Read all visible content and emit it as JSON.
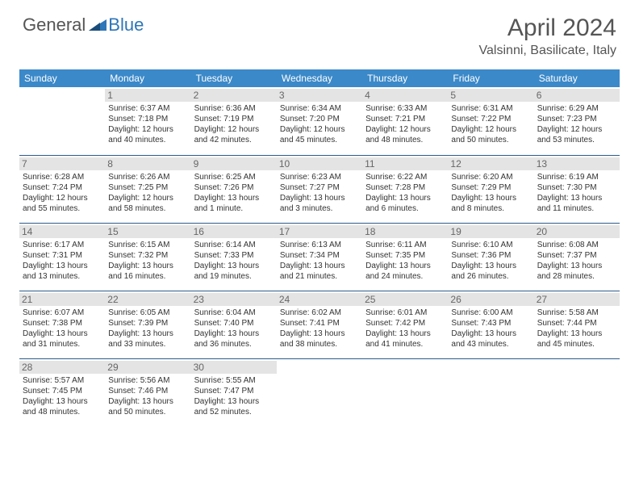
{
  "logo": {
    "part1": "General",
    "part2": "Blue"
  },
  "title": "April 2024",
  "location": "Valsinni, Basilicate, Italy",
  "colors": {
    "header_bg": "#3b89c9",
    "border": "#2d5a8a",
    "daynum_bg": "#e4e4e4",
    "text": "#333333",
    "logo_blue": "#2d76b8"
  },
  "weekdays": [
    "Sunday",
    "Monday",
    "Tuesday",
    "Wednesday",
    "Thursday",
    "Friday",
    "Saturday"
  ],
  "weeks": [
    [
      null,
      {
        "n": "1",
        "sr": "6:37 AM",
        "ss": "7:18 PM",
        "d": "12 hours and 40 minutes."
      },
      {
        "n": "2",
        "sr": "6:36 AM",
        "ss": "7:19 PM",
        "d": "12 hours and 42 minutes."
      },
      {
        "n": "3",
        "sr": "6:34 AM",
        "ss": "7:20 PM",
        "d": "12 hours and 45 minutes."
      },
      {
        "n": "4",
        "sr": "6:33 AM",
        "ss": "7:21 PM",
        "d": "12 hours and 48 minutes."
      },
      {
        "n": "5",
        "sr": "6:31 AM",
        "ss": "7:22 PM",
        "d": "12 hours and 50 minutes."
      },
      {
        "n": "6",
        "sr": "6:29 AM",
        "ss": "7:23 PM",
        "d": "12 hours and 53 minutes."
      }
    ],
    [
      {
        "n": "7",
        "sr": "6:28 AM",
        "ss": "7:24 PM",
        "d": "12 hours and 55 minutes."
      },
      {
        "n": "8",
        "sr": "6:26 AM",
        "ss": "7:25 PM",
        "d": "12 hours and 58 minutes."
      },
      {
        "n": "9",
        "sr": "6:25 AM",
        "ss": "7:26 PM",
        "d": "13 hours and 1 minute."
      },
      {
        "n": "10",
        "sr": "6:23 AM",
        "ss": "7:27 PM",
        "d": "13 hours and 3 minutes."
      },
      {
        "n": "11",
        "sr": "6:22 AM",
        "ss": "7:28 PM",
        "d": "13 hours and 6 minutes."
      },
      {
        "n": "12",
        "sr": "6:20 AM",
        "ss": "7:29 PM",
        "d": "13 hours and 8 minutes."
      },
      {
        "n": "13",
        "sr": "6:19 AM",
        "ss": "7:30 PM",
        "d": "13 hours and 11 minutes."
      }
    ],
    [
      {
        "n": "14",
        "sr": "6:17 AM",
        "ss": "7:31 PM",
        "d": "13 hours and 13 minutes."
      },
      {
        "n": "15",
        "sr": "6:15 AM",
        "ss": "7:32 PM",
        "d": "13 hours and 16 minutes."
      },
      {
        "n": "16",
        "sr": "6:14 AM",
        "ss": "7:33 PM",
        "d": "13 hours and 19 minutes."
      },
      {
        "n": "17",
        "sr": "6:13 AM",
        "ss": "7:34 PM",
        "d": "13 hours and 21 minutes."
      },
      {
        "n": "18",
        "sr": "6:11 AM",
        "ss": "7:35 PM",
        "d": "13 hours and 24 minutes."
      },
      {
        "n": "19",
        "sr": "6:10 AM",
        "ss": "7:36 PM",
        "d": "13 hours and 26 minutes."
      },
      {
        "n": "20",
        "sr": "6:08 AM",
        "ss": "7:37 PM",
        "d": "13 hours and 28 minutes."
      }
    ],
    [
      {
        "n": "21",
        "sr": "6:07 AM",
        "ss": "7:38 PM",
        "d": "13 hours and 31 minutes."
      },
      {
        "n": "22",
        "sr": "6:05 AM",
        "ss": "7:39 PM",
        "d": "13 hours and 33 minutes."
      },
      {
        "n": "23",
        "sr": "6:04 AM",
        "ss": "7:40 PM",
        "d": "13 hours and 36 minutes."
      },
      {
        "n": "24",
        "sr": "6:02 AM",
        "ss": "7:41 PM",
        "d": "13 hours and 38 minutes."
      },
      {
        "n": "25",
        "sr": "6:01 AM",
        "ss": "7:42 PM",
        "d": "13 hours and 41 minutes."
      },
      {
        "n": "26",
        "sr": "6:00 AM",
        "ss": "7:43 PM",
        "d": "13 hours and 43 minutes."
      },
      {
        "n": "27",
        "sr": "5:58 AM",
        "ss": "7:44 PM",
        "d": "13 hours and 45 minutes."
      }
    ],
    [
      {
        "n": "28",
        "sr": "5:57 AM",
        "ss": "7:45 PM",
        "d": "13 hours and 48 minutes."
      },
      {
        "n": "29",
        "sr": "5:56 AM",
        "ss": "7:46 PM",
        "d": "13 hours and 50 minutes."
      },
      {
        "n": "30",
        "sr": "5:55 AM",
        "ss": "7:47 PM",
        "d": "13 hours and 52 minutes."
      },
      null,
      null,
      null,
      null
    ]
  ],
  "labels": {
    "sunrise": "Sunrise:",
    "sunset": "Sunset:",
    "daylight": "Daylight:"
  }
}
